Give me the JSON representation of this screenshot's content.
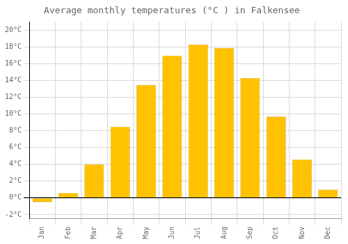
{
  "chart_data": {
    "type": "bar",
    "title": "Average monthly temperatures (°C ) in Falkensee",
    "categories": [
      "Jan",
      "Feb",
      "Mar",
      "Apr",
      "May",
      "Jun",
      "Jul",
      "Aug",
      "Sep",
      "Oct",
      "Nov",
      "Dec"
    ],
    "values": [
      -0.5,
      0.6,
      4.0,
      8.5,
      13.5,
      17.0,
      18.3,
      17.9,
      14.3,
      9.7,
      4.6,
      1.0
    ],
    "color": "#FFC200",
    "ylim": [
      -2.5,
      21
    ],
    "yticks": [
      {
        "value": -2,
        "label": "-2°C"
      },
      {
        "value": 0,
        "label": "0°C"
      },
      {
        "value": 2,
        "label": "2°C"
      },
      {
        "value": 4,
        "label": "4°C"
      },
      {
        "value": 6,
        "label": "6°C"
      },
      {
        "value": 8,
        "label": "8°C"
      },
      {
        "value": 10,
        "label": "10°C"
      },
      {
        "value": 12,
        "label": "12°C"
      },
      {
        "value": 14,
        "label": "14°C"
      },
      {
        "value": 16,
        "label": "16°C"
      },
      {
        "value": 18,
        "label": "18°C"
      },
      {
        "value": 20,
        "label": "20°C"
      }
    ],
    "grid": true
  }
}
